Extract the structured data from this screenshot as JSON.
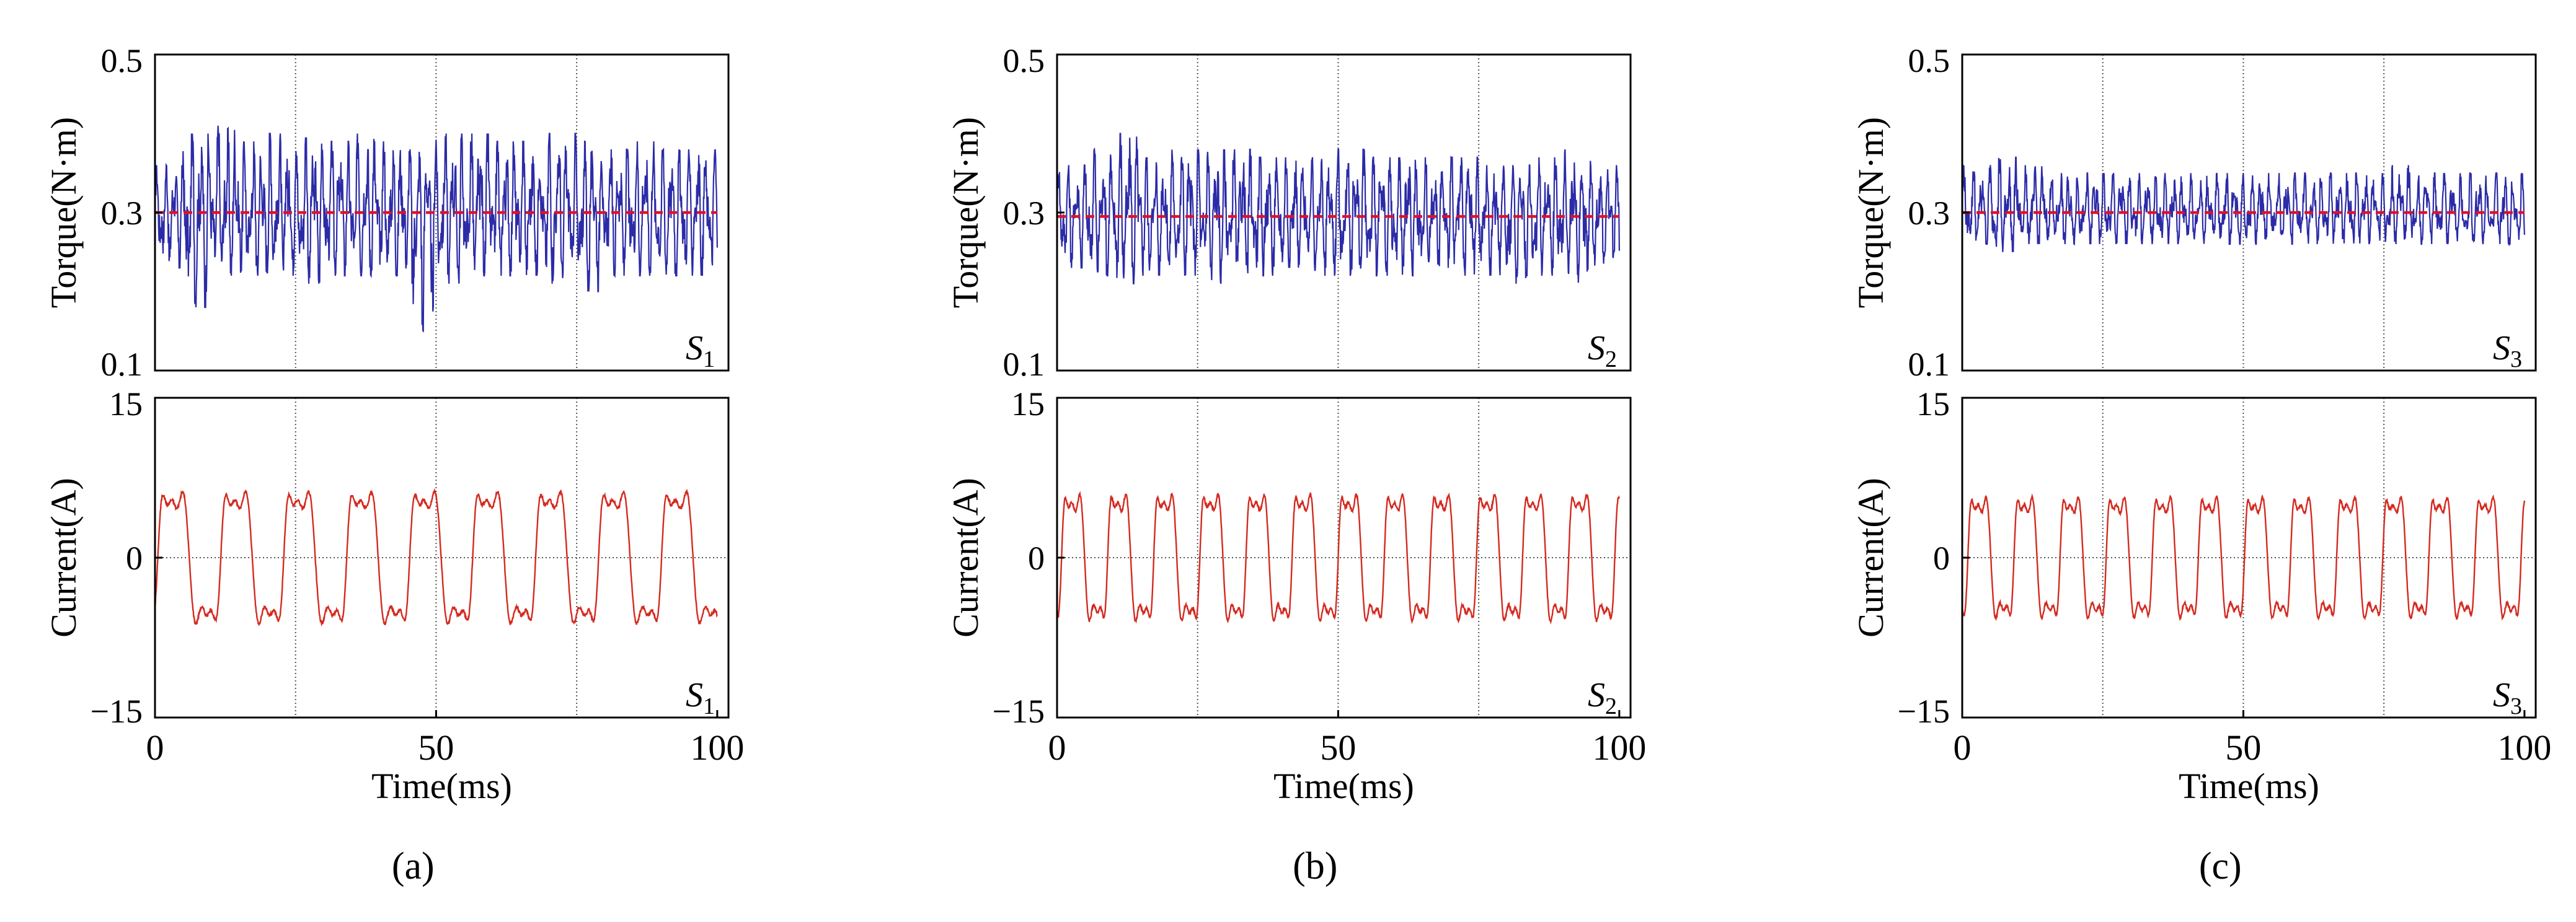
{
  "chart_data": [
    {
      "panel": "(a)",
      "type": "line",
      "subplots": [
        {
          "id": "torque",
          "ylabel": "Torque(N·m)",
          "ylim": [
            0.1,
            0.5
          ],
          "yticks": [
            0.1,
            0.3,
            0.5
          ],
          "tag": {
            "base": "S",
            "sub": "1"
          },
          "series": [
            {
              "name": "torque",
              "color": "#2b2ba8",
              "mean": 0.3,
              "amplitude": 0.065,
              "x": [
                0,
                5,
                10,
                15,
                20,
                25,
                30,
                35,
                40,
                45,
                50,
                55,
                60,
                65,
                70,
                75,
                80,
                85,
                90,
                95,
                100
              ],
              "max": [
                0.36,
                0.4,
                0.41,
                0.39,
                0.4,
                0.4,
                0.39,
                0.4,
                0.39,
                0.38,
                0.4,
                0.4,
                0.39,
                0.39,
                0.4,
                0.39,
                0.38,
                0.39,
                0.38,
                0.38,
                0.38
              ],
              "min": [
                0.23,
                0.18,
                0.22,
                0.22,
                0.22,
                0.21,
                0.22,
                0.22,
                0.22,
                0.15,
                0.21,
                0.22,
                0.22,
                0.22,
                0.21,
                0.2,
                0.22,
                0.22,
                0.22,
                0.22,
                0.23
              ]
            },
            {
              "name": "average",
              "color": "#e0102a",
              "style": "dashed",
              "x": [
                0,
                100
              ],
              "values": [
                0.3,
                0.3
              ]
            }
          ]
        },
        {
          "id": "current",
          "ylabel": "Current(A)",
          "ylim": [
            -15,
            15
          ],
          "yticks": [
            -15,
            0,
            15
          ],
          "tag": {
            "base": "S",
            "sub": "1"
          },
          "series": [
            {
              "name": "current",
              "color": "#d42a20",
              "amplitude": 7.1,
              "period_ms": 11.2,
              "phase_ms": 0.5,
              "x": [
                0,
                100
              ]
            }
          ]
        }
      ],
      "xlabel": "Time(ms)",
      "xlim": [
        0,
        102
      ],
      "xticks": [
        0,
        50,
        100
      ],
      "gridlines_x": [
        25,
        50,
        75
      ]
    },
    {
      "panel": "(b)",
      "type": "line",
      "subplots": [
        {
          "id": "torque",
          "ylabel": "Torque(N·m)",
          "ylim": [
            0.1,
            0.5
          ],
          "yticks": [
            0.1,
            0.3,
            0.5
          ],
          "tag": {
            "base": "S",
            "sub": "2"
          },
          "series": [
            {
              "name": "torque",
              "color": "#2b2ba8",
              "mean": 0.295,
              "amplitude": 0.05,
              "x": [
                0,
                5,
                10,
                15,
                20,
                25,
                30,
                35,
                40,
                45,
                50,
                55,
                60,
                65,
                70,
                75,
                80,
                85,
                90,
                95,
                100
              ],
              "max": [
                0.36,
                0.38,
                0.4,
                0.37,
                0.38,
                0.38,
                0.38,
                0.37,
                0.37,
                0.37,
                0.38,
                0.37,
                0.37,
                0.37,
                0.37,
                0.36,
                0.36,
                0.37,
                0.38,
                0.36,
                0.37
              ],
              "min": [
                0.23,
                0.22,
                0.21,
                0.22,
                0.22,
                0.21,
                0.22,
                0.22,
                0.23,
                0.22,
                0.22,
                0.22,
                0.22,
                0.23,
                0.22,
                0.22,
                0.21,
                0.22,
                0.21,
                0.23,
                0.23
              ]
            },
            {
              "name": "average",
              "color": "#e0102a",
              "style": "dashed",
              "x": [
                0,
                100
              ],
              "values": [
                0.295,
                0.295
              ]
            }
          ]
        },
        {
          "id": "current",
          "ylabel": "Current(A)",
          "ylim": [
            -15,
            15
          ],
          "yticks": [
            -15,
            0,
            15
          ],
          "tag": {
            "base": "S",
            "sub": "2"
          },
          "series": [
            {
              "name": "current",
              "color": "#d42a20",
              "amplitude": 6.8,
              "period_ms": 8.2,
              "phase_ms": 0.8,
              "x": [
                0,
                100
              ]
            }
          ]
        }
      ],
      "xlabel": "Time(ms)",
      "xlim": [
        0,
        102
      ],
      "xticks": [
        0,
        50,
        100
      ],
      "gridlines_x": [
        25,
        50,
        75
      ]
    },
    {
      "panel": "(c)",
      "type": "line",
      "subplots": [
        {
          "id": "torque",
          "ylabel": "Torque(N·m)",
          "ylim": [
            0.1,
            0.5
          ],
          "yticks": [
            0.1,
            0.3,
            0.5
          ],
          "tag": {
            "base": "S",
            "sub": "3"
          },
          "series": [
            {
              "name": "torque",
              "color": "#2b2ba8",
              "mean": 0.3,
              "amplitude": 0.038,
              "x": [
                0,
                5,
                10,
                15,
                20,
                25,
                30,
                35,
                40,
                45,
                50,
                55,
                60,
                65,
                70,
                75,
                80,
                85,
                90,
                95,
                100
              ],
              "max": [
                0.36,
                0.37,
                0.36,
                0.35,
                0.35,
                0.35,
                0.35,
                0.35,
                0.35,
                0.35,
                0.35,
                0.35,
                0.35,
                0.35,
                0.35,
                0.36,
                0.35,
                0.35,
                0.35,
                0.35,
                0.35
              ],
              "min": [
                0.26,
                0.25,
                0.26,
                0.26,
                0.26,
                0.26,
                0.26,
                0.26,
                0.26,
                0.26,
                0.26,
                0.26,
                0.26,
                0.26,
                0.26,
                0.26,
                0.26,
                0.26,
                0.26,
                0.26,
                0.26
              ]
            },
            {
              "name": "average",
              "color": "#e0102a",
              "style": "dashed",
              "x": [
                0,
                100
              ],
              "values": [
                0.3,
                0.3
              ]
            }
          ]
        },
        {
          "id": "current",
          "ylabel": "Current(A)",
          "ylim": [
            -15,
            15
          ],
          "yticks": [
            -15,
            0,
            15
          ],
          "tag": {
            "base": "S",
            "sub": "3"
          },
          "series": [
            {
              "name": "current",
              "color": "#d42a20",
              "amplitude": 6.5,
              "period_ms": 8.2,
              "phase_ms": 1.0,
              "x": [
                0,
                100
              ]
            }
          ]
        }
      ],
      "xlabel": "Time(ms)",
      "xlim": [
        0,
        102
      ],
      "xticks": [
        0,
        50,
        100
      ],
      "gridlines_x": [
        25,
        50,
        75
      ]
    }
  ]
}
